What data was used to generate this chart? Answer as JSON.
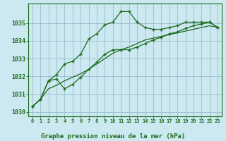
{
  "xlabel": "Graphe pression niveau de la mer (hPa)",
  "bg_color": "#cce8f0",
  "grid_color": "#99bbcc",
  "line_color": "#1a6b1a",
  "x": [
    0,
    1,
    2,
    3,
    4,
    5,
    6,
    7,
    8,
    9,
    10,
    11,
    12,
    13,
    14,
    15,
    16,
    17,
    18,
    19,
    20,
    21,
    22,
    23
  ],
  "line1": [
    1030.3,
    1030.7,
    1031.75,
    1032.1,
    1032.7,
    1032.85,
    1033.25,
    1034.1,
    1034.4,
    1034.9,
    1035.05,
    1035.65,
    1035.65,
    1035.05,
    1034.75,
    1034.65,
    1034.65,
    1034.75,
    1034.85,
    1035.05,
    1035.05,
    1035.05,
    1035.05,
    1034.75
  ],
  "line2": [
    1030.3,
    1030.7,
    1031.75,
    1031.85,
    1031.3,
    1031.55,
    1031.95,
    1032.4,
    1032.8,
    1033.25,
    1033.5,
    1033.5,
    1033.5,
    1033.65,
    1033.85,
    1034.05,
    1034.2,
    1034.4,
    1034.5,
    1034.7,
    1034.85,
    1034.95,
    1035.05,
    1034.75
  ],
  "line3": [
    1030.3,
    1030.7,
    1031.3,
    1031.5,
    1031.75,
    1031.95,
    1032.15,
    1032.4,
    1032.7,
    1033.0,
    1033.3,
    1033.5,
    1033.65,
    1033.85,
    1034.05,
    1034.15,
    1034.25,
    1034.35,
    1034.45,
    1034.55,
    1034.65,
    1034.75,
    1034.85,
    1034.75
  ],
  "ylim": [
    1029.75,
    1036.1
  ],
  "yticks": [
    1030,
    1031,
    1032,
    1033,
    1034,
    1035
  ],
  "xlim": [
    -0.5,
    23.5
  ],
  "xticks": [
    0,
    1,
    2,
    3,
    4,
    5,
    6,
    7,
    8,
    9,
    10,
    11,
    12,
    13,
    14,
    15,
    16,
    17,
    18,
    19,
    20,
    21,
    22,
    23
  ],
  "xtick_labels": [
    "0",
    "1",
    "2",
    "3",
    "4",
    "5",
    "6",
    "7",
    "8",
    "9",
    "10",
    "11",
    "12",
    "13",
    "14",
    "15",
    "16",
    "17",
    "18",
    "19",
    "20",
    "21",
    "22",
    "23"
  ],
  "figsize": [
    3.2,
    2.0
  ],
  "dpi": 100
}
